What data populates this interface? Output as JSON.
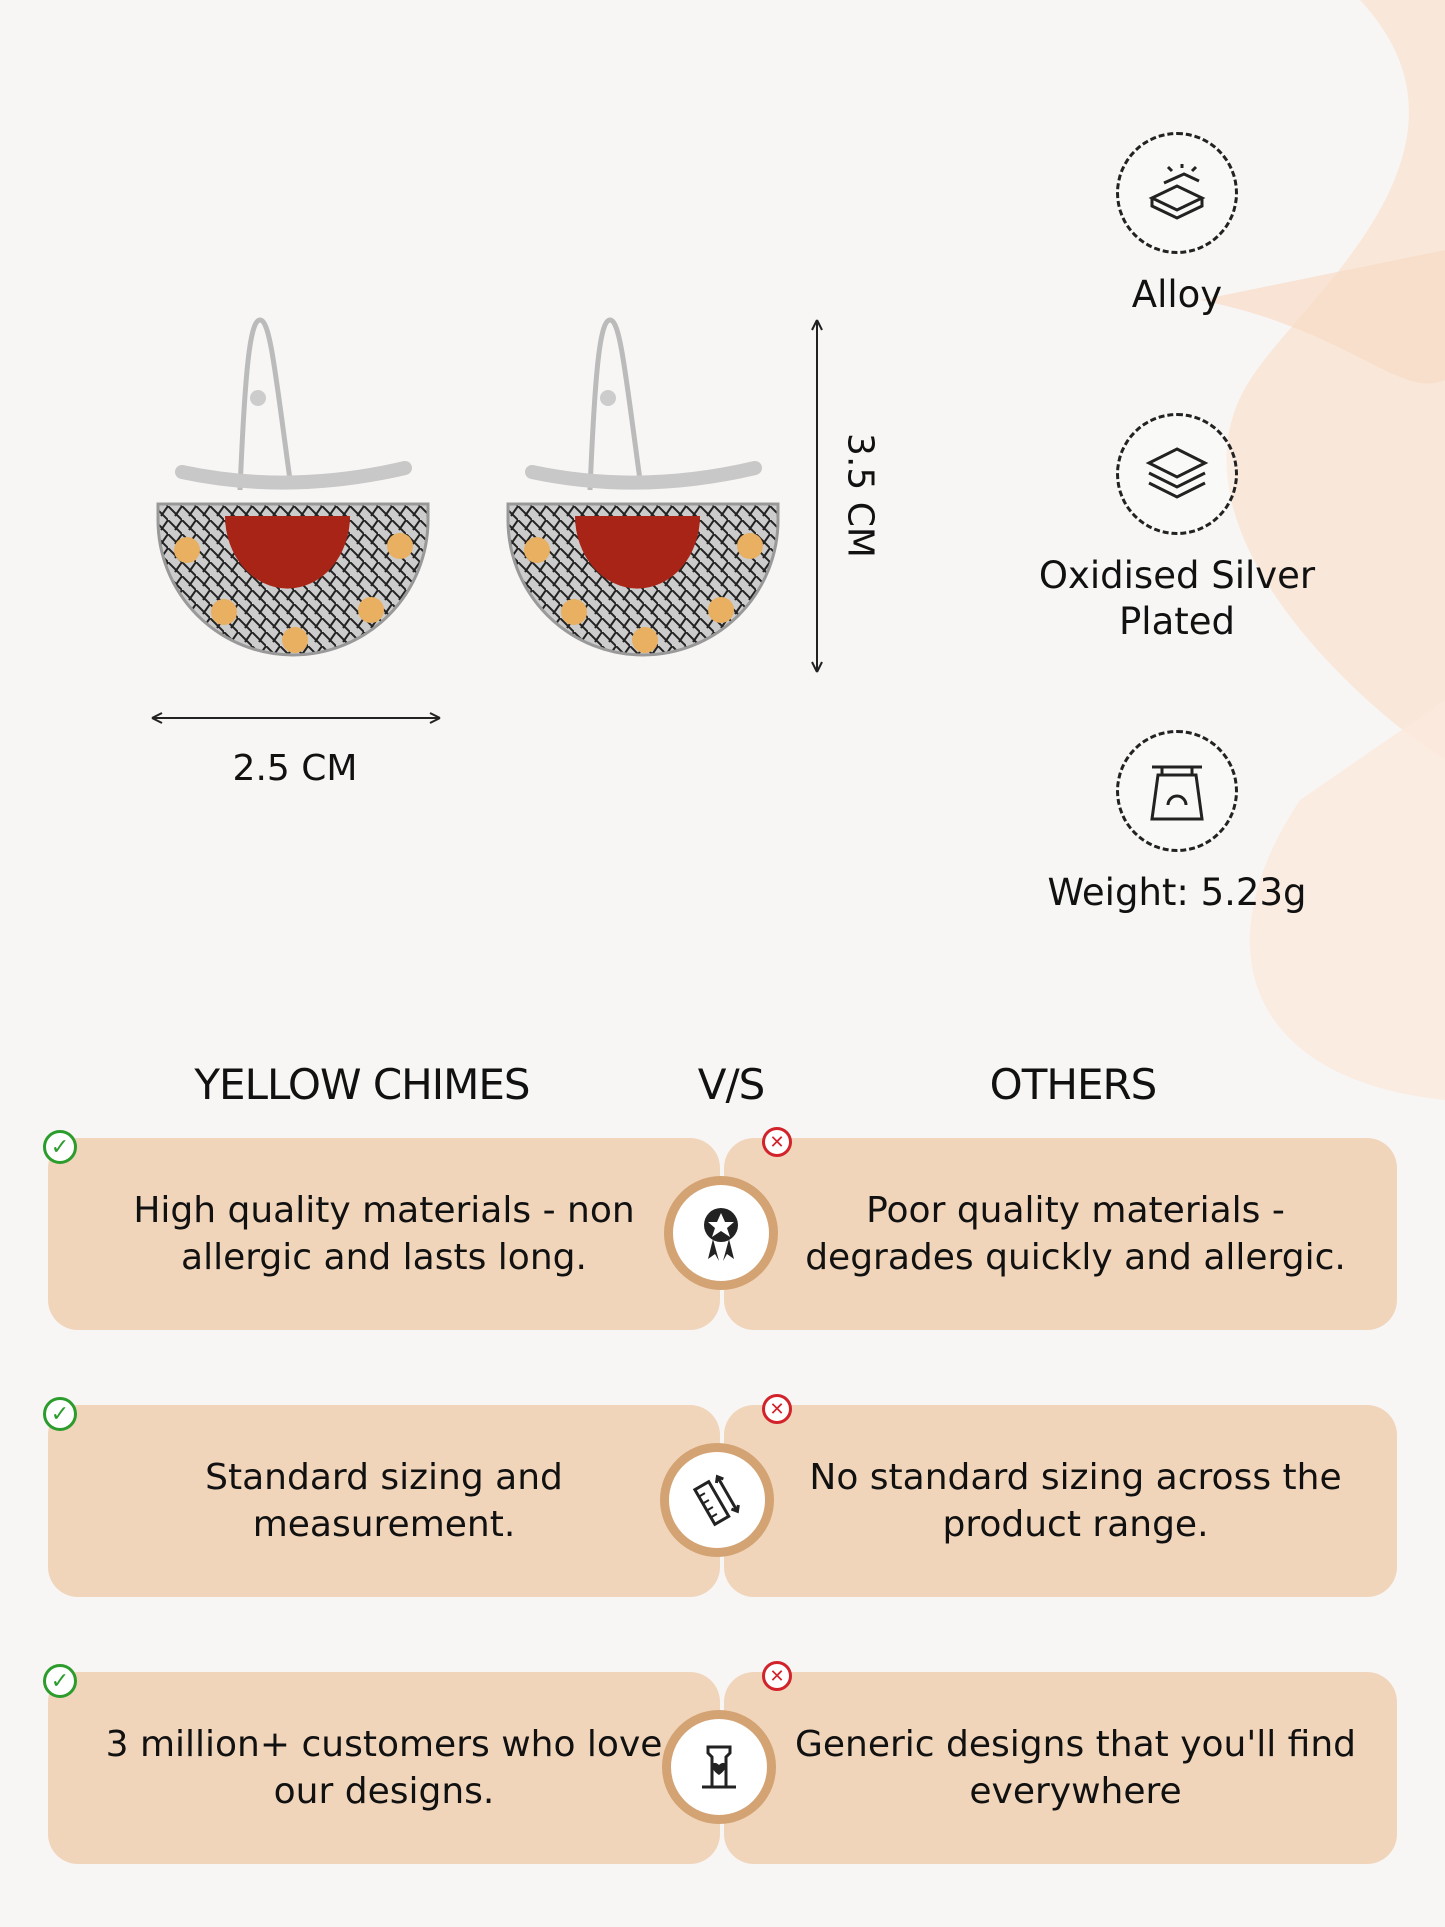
{
  "dimensions": {
    "width_label": "2.5 CM",
    "height_label": "3.5 CM"
  },
  "features": [
    {
      "icon": "metal-bars-icon",
      "label": "Alloy"
    },
    {
      "icon": "layers-icon",
      "label": "Oxidised Silver Plated"
    },
    {
      "icon": "weighing-scale-icon",
      "label": "Weight: 5.23g"
    }
  ],
  "comparison": {
    "left_heading": "YELLOW CHIMES",
    "vs": "V/S",
    "right_heading": "OTHERS",
    "rows": [
      {
        "icon": "award-ribbon-icon",
        "ours": "High quality materials - non allergic and lasts long.",
        "others": "Poor quality materials - degrades quickly and allergic."
      },
      {
        "icon": "ruler-measure-icon",
        "ours": "Standard sizing and measurement.",
        "others": "No standard sizing across the product range."
      },
      {
        "icon": "customer-love-icon",
        "ours": "3 million+ customers who love our designs.",
        "others": "Generic designs that you'll find everywhere"
      }
    ]
  },
  "colors": {
    "card": "#f1d5bb",
    "ring": "#d4a373",
    "check": "#2c9c2c",
    "cross": "#d2222a"
  }
}
